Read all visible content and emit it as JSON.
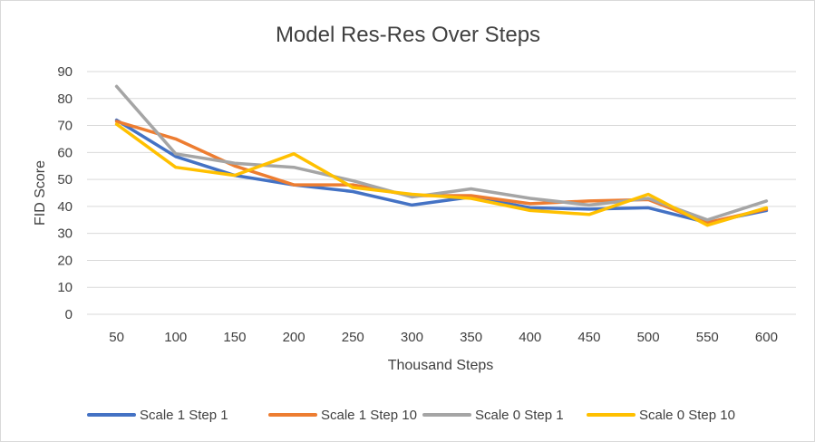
{
  "chart_data": {
    "type": "line",
    "title": "Model Res-Res Over Steps",
    "xlabel": "Thousand Steps",
    "ylabel": "FID Score",
    "categories": [
      "50",
      "100",
      "150",
      "200",
      "250",
      "300",
      "350",
      "400",
      "450",
      "500",
      "550",
      "600"
    ],
    "ylim": [
      0,
      90
    ],
    "yticks": [
      "0",
      "10",
      "20",
      "30",
      "40",
      "50",
      "60",
      "70",
      "80",
      "90"
    ],
    "grid": true,
    "legend_position": "bottom",
    "series": [
      {
        "name": "Scale 1 Step 1",
        "color": "#4472c4",
        "values": [
          72,
          58.5,
          51.5,
          48,
          45.5,
          40.5,
          43.5,
          39.5,
          39,
          39.5,
          34,
          38.5
        ]
      },
      {
        "name": "Scale 1 Step 10",
        "color": "#ed7d31",
        "values": [
          71.5,
          65,
          55,
          48,
          48,
          44,
          44,
          41,
          42,
          42.5,
          34,
          39
        ]
      },
      {
        "name": "Scale 0 Step 1",
        "color": "#a5a5a5",
        "values": [
          84.5,
          59.5,
          56,
          54.5,
          49.5,
          43.5,
          46.5,
          43,
          40.5,
          43,
          35,
          42
        ]
      },
      {
        "name": "Scale 0 Step 10",
        "color": "#ffc000",
        "values": [
          70.5,
          54.5,
          51.5,
          59.5,
          47,
          44.5,
          43,
          38.5,
          37,
          44.5,
          33,
          39.5
        ]
      }
    ]
  }
}
